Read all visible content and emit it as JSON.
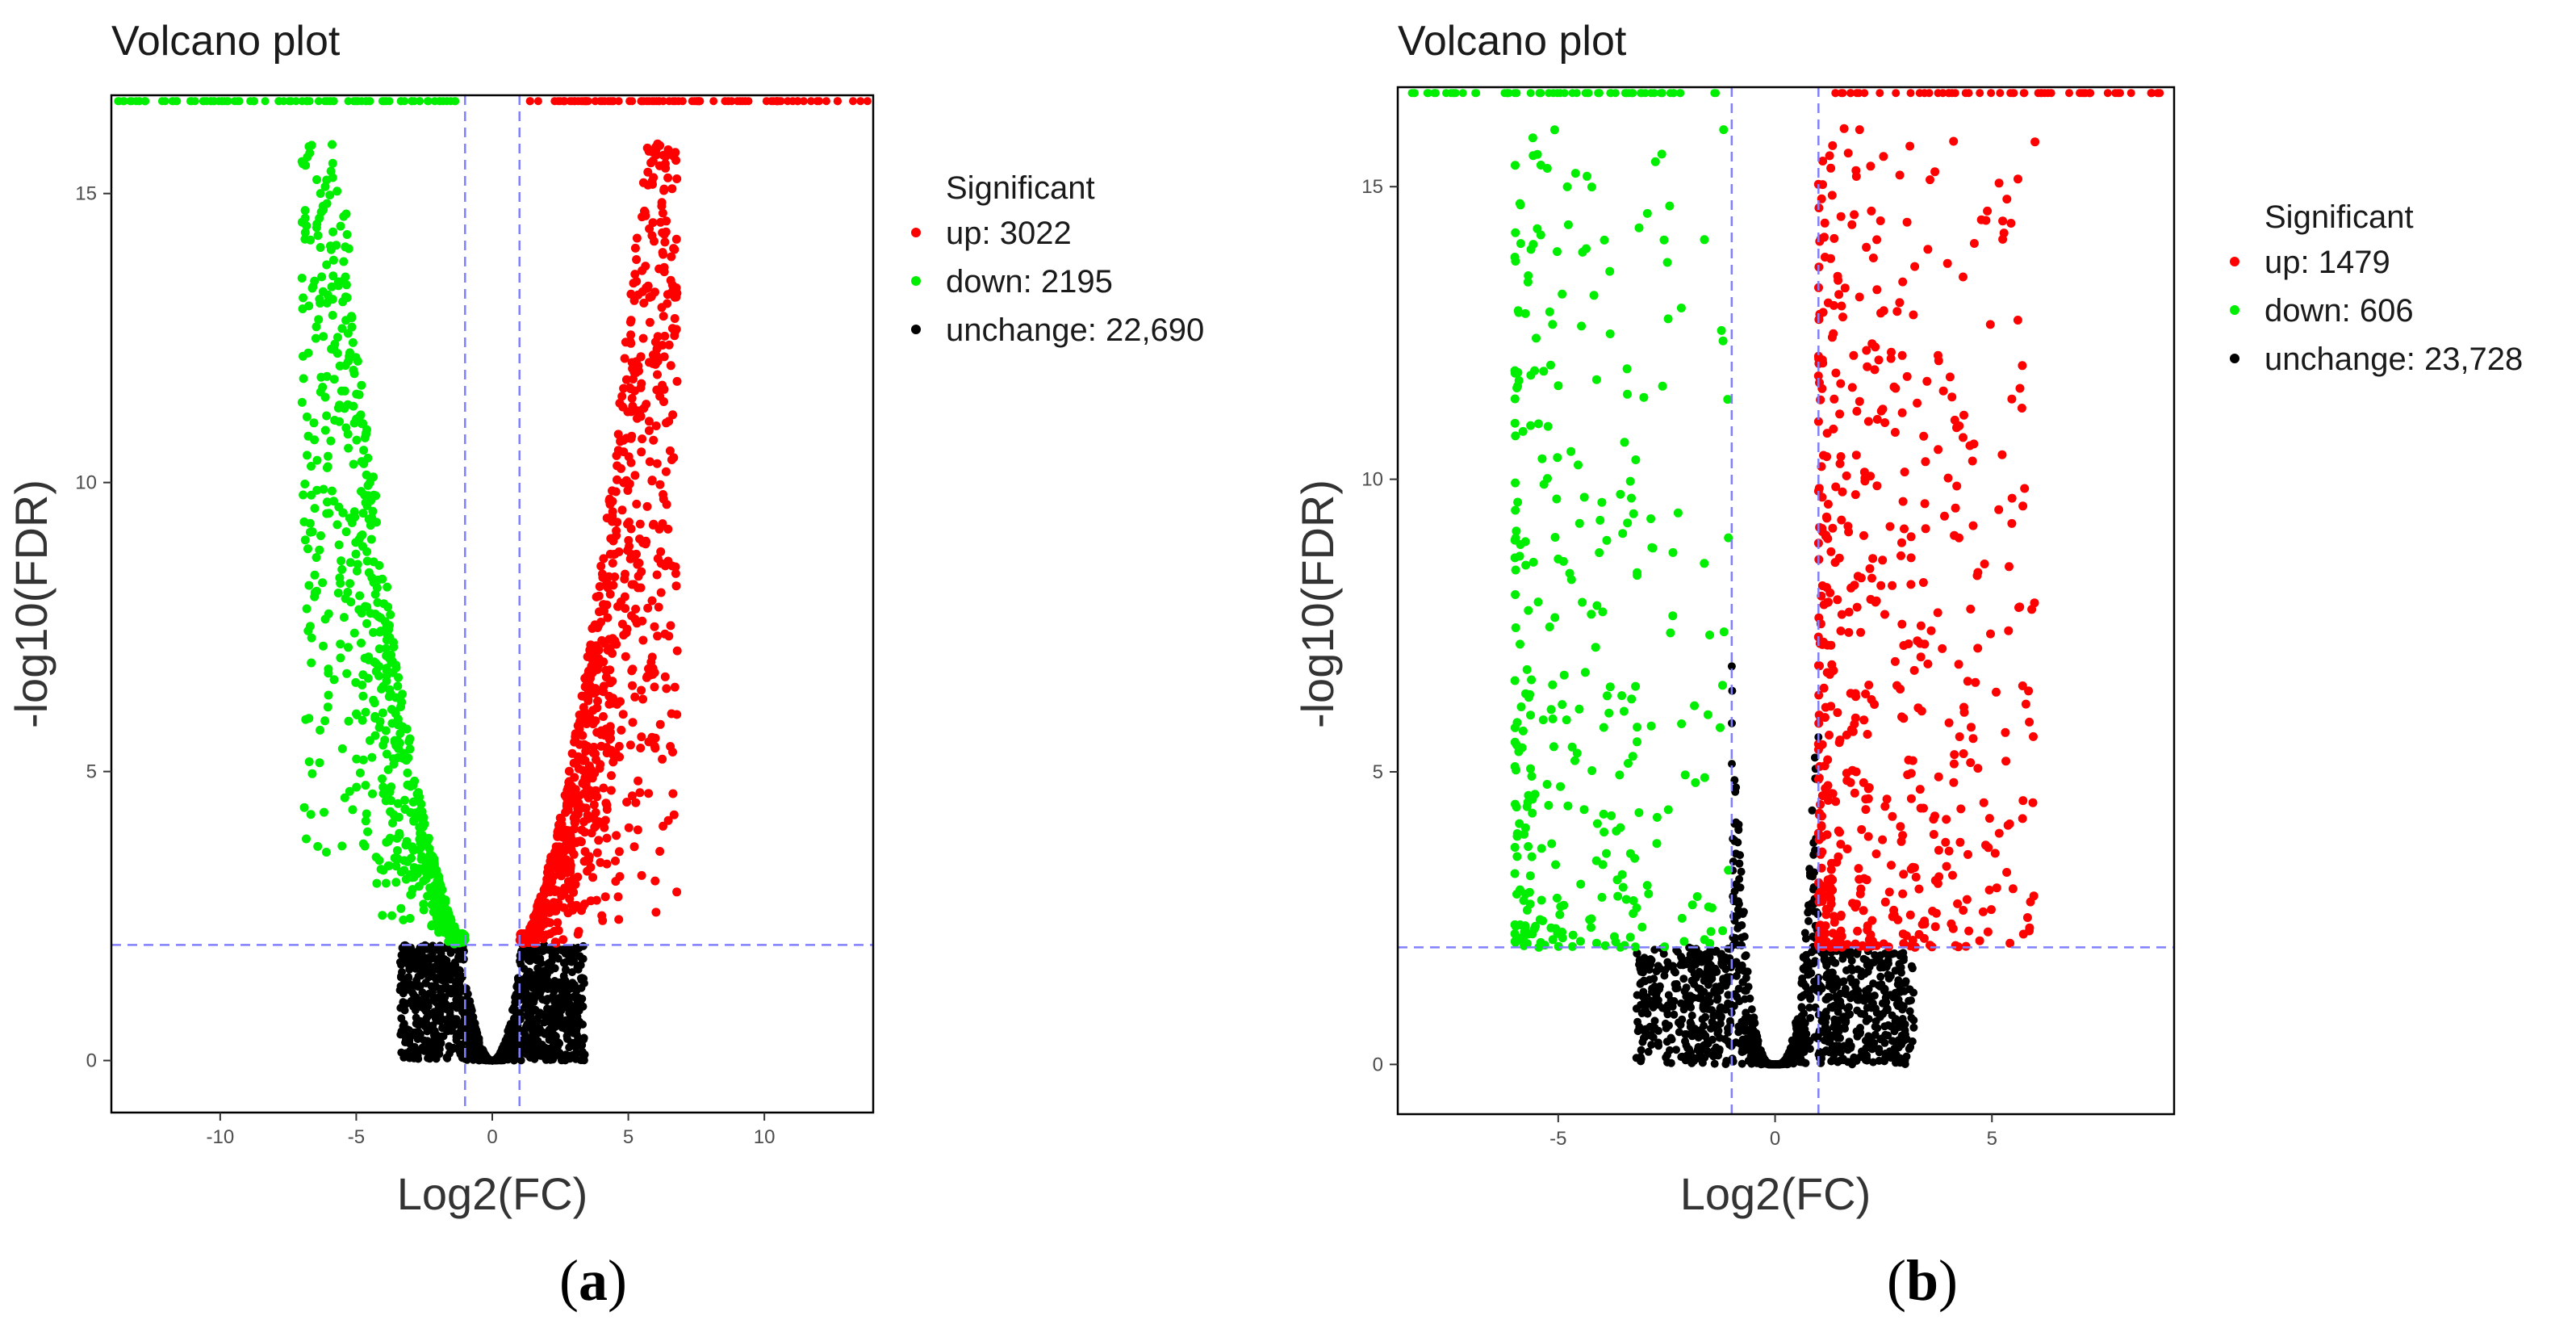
{
  "chart_data": [
    {
      "type": "scatter",
      "panel_label": "(a)",
      "panel_letter": "a",
      "title": "Volcano plot",
      "xlabel": "Log2(FC)",
      "ylabel": "-log10(FDR)",
      "xlim": [
        -14,
        14
      ],
      "ylim": [
        -0.9,
        16.7
      ],
      "xticks": [
        -10,
        -5,
        0,
        5,
        10
      ],
      "yticks": [
        0,
        5,
        10,
        15
      ],
      "thresholds": {
        "log2fc": [
          -1,
          1
        ],
        "neg_log10_fdr": 2
      },
      "legend": {
        "title": "Significant",
        "position": "right",
        "entries": [
          {
            "key": "up",
            "label": "up: 3022",
            "color": "#ff0000"
          },
          {
            "key": "down",
            "label": "down: 2195",
            "color": "#00ee00"
          },
          {
            "key": "unchange",
            "label": "unchange: 22,690",
            "color": "#000000"
          }
        ]
      },
      "series": [
        {
          "name": "up",
          "count": 3022,
          "color": "#ff0000"
        },
        {
          "name": "down",
          "count": 2195,
          "color": "#00ee00"
        },
        {
          "name": "unchange",
          "count": 22690,
          "color": "#000000"
        }
      ],
      "shape": {
        "envelope": "steep",
        "down_x_range": [
          -7,
          -1
        ],
        "up_x_range": [
          1,
          6.8
        ],
        "capped_y": 16.6
      }
    },
    {
      "type": "scatter",
      "panel_label": "(b)",
      "panel_letter": "b",
      "title": "Volcano plot",
      "xlabel": "Log2(FC)",
      "ylabel": "-log10(FDR)",
      "xlim": [
        -8.7,
        9.2
      ],
      "ylim": [
        -0.85,
        16.7
      ],
      "xticks": [
        -5,
        0,
        5
      ],
      "yticks": [
        0,
        5,
        10,
        15
      ],
      "thresholds": {
        "log2fc": [
          -1,
          1
        ],
        "neg_log10_fdr": 2
      },
      "legend": {
        "title": "Significant",
        "position": "right",
        "entries": [
          {
            "key": "up",
            "label": "up: 1479",
            "color": "#ff0000"
          },
          {
            "key": "down",
            "label": "down: 606",
            "color": "#00ee00"
          },
          {
            "key": "unchange",
            "label": "unchange: 23,728",
            "color": "#000000"
          }
        ]
      },
      "series": [
        {
          "name": "up",
          "count": 1479,
          "color": "#ff0000"
        },
        {
          "name": "down",
          "count": 606,
          "color": "#00ee00"
        },
        {
          "name": "unchange",
          "count": 23728,
          "color": "#000000"
        }
      ],
      "shape": {
        "envelope": "narrow",
        "down_x_range": [
          -6,
          -1
        ],
        "up_x_range": [
          1,
          6
        ],
        "capped_y": 16.6
      }
    }
  ],
  "colors": {
    "threshold_line": "#8080ff",
    "axis": "#000000"
  }
}
